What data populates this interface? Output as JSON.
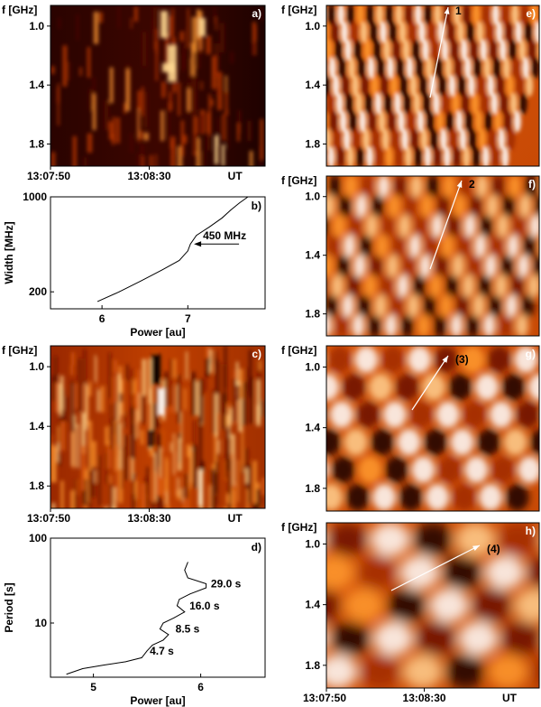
{
  "common": {
    "freq_label": "f [GHz]",
    "freq_ticks": [
      "1.0",
      "1.4",
      "1.8"
    ],
    "time_ticks": [
      "13:07:50",
      "13:08:30"
    ],
    "time_unit": "UT"
  },
  "panels": [
    {
      "id": "a",
      "label": "a)",
      "type": "heatmap",
      "colors": [
        "#000000",
        "#5a0a00",
        "#c03a00",
        "#ff9a30",
        "#ffffff"
      ]
    },
    {
      "id": "c",
      "label": "c)",
      "type": "heatmap",
      "colors": [
        "#3a0800",
        "#b03000",
        "#ff9a30",
        "#ffffff"
      ]
    },
    {
      "id": "e",
      "label": "e)",
      "arrow": "1"
    },
    {
      "id": "f",
      "label": "f)",
      "arrow": "2"
    },
    {
      "id": "g",
      "label": "g)",
      "arrow": "(3)"
    },
    {
      "id": "h",
      "label": "h)",
      "arrow": "(4)"
    }
  ],
  "chart_data": [
    {
      "id": "b",
      "type": "line",
      "label": "b)",
      "xlabel": "Power [au]",
      "ylabel": "Width [MHz]",
      "xlim": [
        5.4,
        7.9
      ],
      "ylim": [
        150,
        1000
      ],
      "yscale": "log",
      "xticks": [
        "6",
        "7"
      ],
      "yticks": [
        "1000",
        "200"
      ],
      "annotation": "450 MHz",
      "x": [
        5.95,
        6.2,
        6.45,
        6.7,
        6.9,
        7.0,
        7.03,
        7.1,
        7.25,
        7.4,
        7.5,
        7.6,
        7.7
      ],
      "y": [
        170,
        200,
        240,
        290,
        340,
        400,
        450,
        520,
        600,
        700,
        800,
        900,
        1000
      ]
    },
    {
      "id": "d",
      "type": "line",
      "label": "d)",
      "xlabel": "Power [au]",
      "ylabel": "Period [s]",
      "xlim": [
        4.6,
        6.6
      ],
      "ylim": [
        2.3,
        100
      ],
      "yscale": "log",
      "xticks": [
        "5",
        "6"
      ],
      "yticks": [
        "100",
        "10"
      ],
      "annotations": [
        "29.0 s",
        "16.0 s",
        "8.5 s",
        "4.7 s"
      ],
      "x": [
        4.75,
        4.9,
        5.1,
        5.3,
        5.45,
        5.5,
        5.55,
        5.65,
        5.7,
        5.62,
        5.65,
        5.75,
        5.85,
        5.78,
        5.8,
        5.9,
        6.05,
        6.05,
        5.88,
        5.85,
        5.88
      ],
      "y": [
        2.5,
        2.9,
        3.2,
        3.5,
        3.9,
        4.7,
        5.5,
        6.3,
        7.3,
        8.5,
        10,
        11.5,
        13.5,
        16,
        19,
        22,
        26,
        29,
        34,
        42,
        52
      ]
    }
  ]
}
